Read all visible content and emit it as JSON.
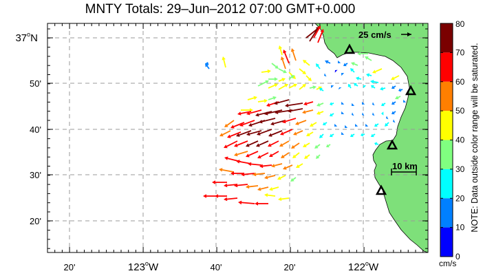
{
  "title": "MNTY Totals: 29–Jun–2012 07:00 GMT+0.000",
  "map": {
    "lat_labels": [
      {
        "value": "37°N",
        "main": "37",
        "sup": "o",
        "suffix": "N"
      },
      {
        "value": "50'",
        "main": "50'"
      },
      {
        "value": "40'",
        "main": "40'"
      },
      {
        "value": "30'",
        "main": "30'"
      },
      {
        "value": "20'",
        "main": "20'"
      }
    ],
    "lon_labels": [
      {
        "main": "20'"
      },
      {
        "main": "123",
        "sup": "o",
        "suffix": "W"
      },
      {
        "main": "40'"
      },
      {
        "main": "20'"
      },
      {
        "main": "122",
        "sup": "o",
        "suffix": "W"
      }
    ],
    "scale_vector_label": "25 cm/s",
    "scale_bar_label": "10 km",
    "land_color": "#7ee07a",
    "grid": true
  },
  "colorbar": {
    "ticks": [
      "80",
      "70",
      "60",
      "50",
      "40",
      "30",
      "20",
      "10",
      "0"
    ],
    "unit": "cm/s",
    "colors": [
      "#7a0000",
      "#ff0000",
      "#ff7f00",
      "#ffff00",
      "#80ff80",
      "#00ffff",
      "#0080ff",
      "#0000ff"
    ],
    "note": "NOTE: Data outside color range will be saturated."
  }
}
